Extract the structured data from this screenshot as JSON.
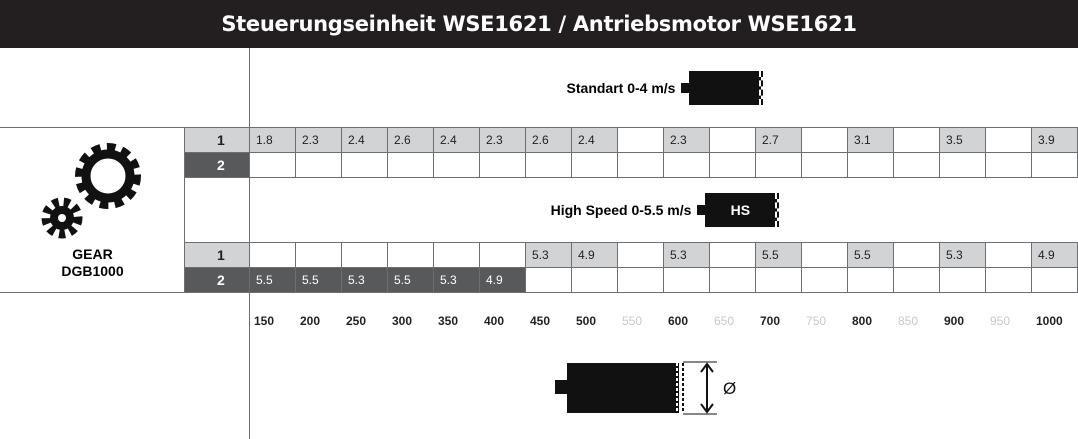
{
  "title": "Steuerungseinheit WSE1621 / Antriebsmotor WSE1621",
  "gear": {
    "line1": "GEAR",
    "line2": "DGB1000"
  },
  "sections": [
    {
      "label": "Standart 0-4 m/s",
      "rows": [
        {
          "gear": "1",
          "cells": [
            1.8,
            2.3,
            2.4,
            2.6,
            2.4,
            2.3,
            2.6,
            2.4,
            null,
            2.3,
            null,
            2.7,
            null,
            3.1,
            null,
            3.5,
            null,
            3.9
          ]
        },
        {
          "gear": "2",
          "cells": [
            null,
            null,
            null,
            null,
            null,
            null,
            null,
            null,
            null,
            null,
            null,
            null,
            null,
            null,
            null,
            null,
            null,
            null
          ]
        }
      ]
    },
    {
      "label": "High Speed 0-5.5 m/s",
      "badge": "HS",
      "rows": [
        {
          "gear": "1",
          "cells": [
            null,
            null,
            null,
            null,
            null,
            null,
            5.3,
            4.9,
            null,
            5.3,
            null,
            5.5,
            null,
            5.5,
            null,
            5.3,
            null,
            4.9
          ]
        },
        {
          "gear": "2",
          "cells": [
            5.5,
            5.5,
            5.3,
            5.5,
            5.3,
            4.9,
            null,
            null,
            null,
            null,
            null,
            null,
            null,
            null,
            null,
            null,
            null,
            null
          ]
        }
      ]
    }
  ],
  "diameters": [
    150,
    200,
    250,
    300,
    350,
    400,
    450,
    500,
    550,
    600,
    650,
    700,
    750,
    800,
    850,
    900,
    950,
    1000
  ],
  "diameter_symbol": "Ø"
}
